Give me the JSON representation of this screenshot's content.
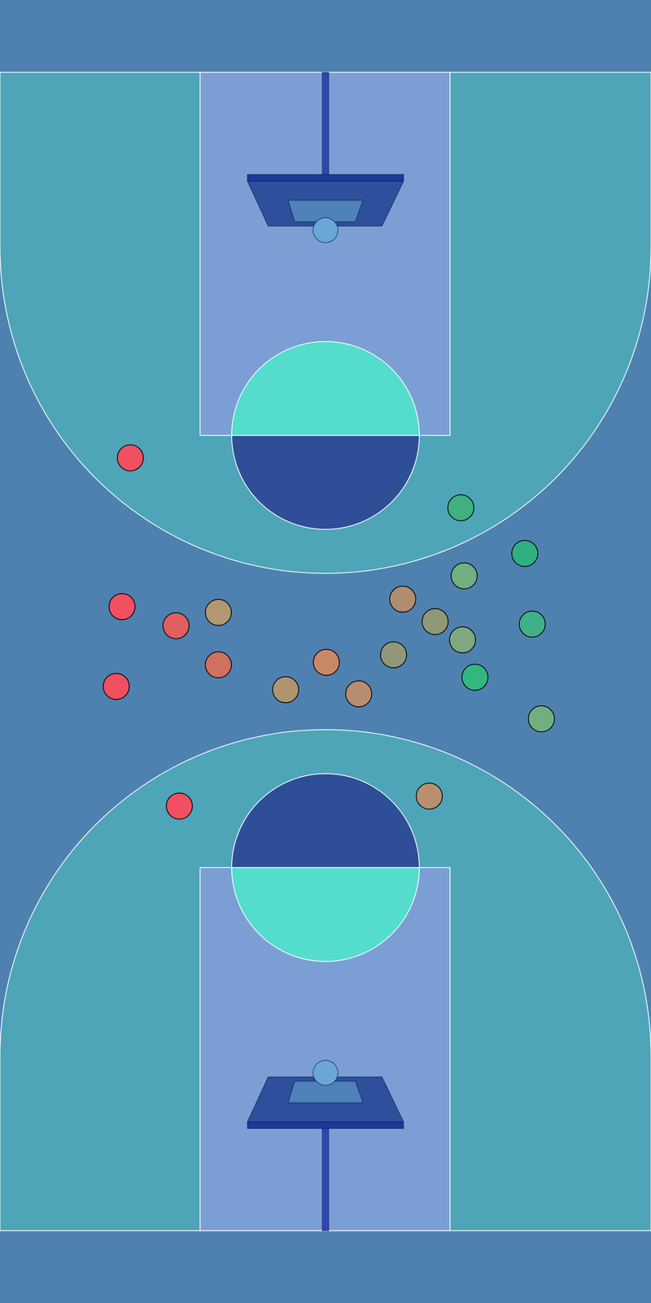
{
  "chart_data": {
    "type": "scatter",
    "x": [
      157,
      555,
      632,
      559,
      147,
      263,
      212,
      485,
      524,
      557,
      641,
      263,
      393,
      474,
      344,
      432,
      572,
      140,
      652,
      216,
      517
    ],
    "y": [
      1017,
      957,
      902,
      875,
      838,
      831,
      815,
      847,
      820,
      798,
      817,
      768,
      771,
      780,
      738,
      733,
      753,
      742,
      703,
      598,
      610
    ],
    "colors": [
      "#f05060",
      "#40b080",
      "#30b080",
      "#70b080",
      "#f05060",
      "#b09870",
      "#e06060",
      "#b08c70",
      "#909878",
      "#80a880",
      "#40b088",
      "#d07060",
      "#c88868",
      "#909878",
      "#b09470",
      "#b88c70",
      "#30b880",
      "#f05060",
      "#70b080",
      "#f05060",
      "#b89070"
    ],
    "xlim": [
      0,
      784
    ],
    "ylim": [
      0,
      1568
    ],
    "tick_labels": false,
    "grid": false,
    "marker": "circle"
  }
}
